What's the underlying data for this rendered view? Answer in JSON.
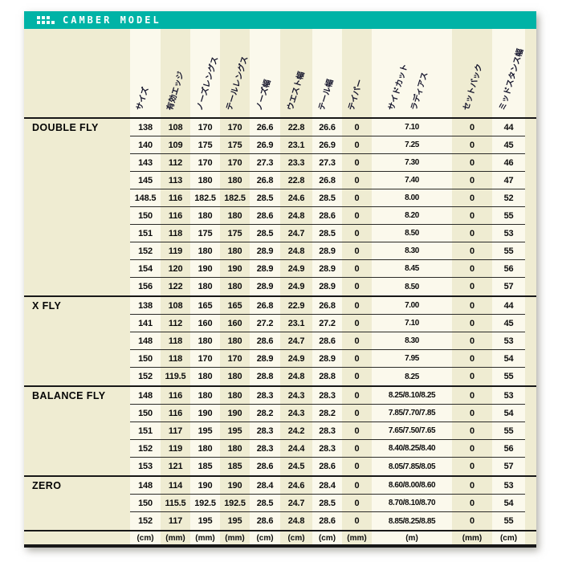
{
  "title_bar": {
    "label": "CAMBER MODEL"
  },
  "colors": {
    "accent": "#00b3a6",
    "paper": "#efecd2",
    "stripe": "#fbf9ec",
    "line": "#181818"
  },
  "table": {
    "headers": [
      [
        "サイズ"
      ],
      [
        "有効エッジ"
      ],
      [
        "ノーズレングス"
      ],
      [
        "テールレングス"
      ],
      [
        "ノーズ幅"
      ],
      [
        "ウエスト幅"
      ],
      [
        "テール幅"
      ],
      [
        "テイパー"
      ],
      [
        "サイドカット",
        "ラディアス"
      ],
      [
        "セットバック"
      ],
      [
        "ミッドスタンス幅"
      ]
    ],
    "units": [
      "(cm)",
      "(mm)",
      "(mm)",
      "(mm)",
      "(cm)",
      "(cm)",
      "(cm)",
      "(mm)",
      "(m)",
      "(mm)",
      "(cm)"
    ],
    "groups": [
      {
        "model": "DOUBLE FLY",
        "rows": [
          [
            "138",
            "108",
            "170",
            "170",
            "26.6",
            "22.8",
            "26.6",
            "0",
            "7.10",
            "0",
            "44"
          ],
          [
            "140",
            "109",
            "175",
            "175",
            "26.9",
            "23.1",
            "26.9",
            "0",
            "7.25",
            "0",
            "45"
          ],
          [
            "143",
            "112",
            "170",
            "170",
            "27.3",
            "23.3",
            "27.3",
            "0",
            "7.30",
            "0",
            "46"
          ],
          [
            "145",
            "113",
            "180",
            "180",
            "26.8",
            "22.8",
            "26.8",
            "0",
            "7.40",
            "0",
            "47"
          ],
          [
            "148.5",
            "116",
            "182.5",
            "182.5",
            "28.5",
            "24.6",
            "28.5",
            "0",
            "8.00",
            "0",
            "52"
          ],
          [
            "150",
            "116",
            "180",
            "180",
            "28.6",
            "24.8",
            "28.6",
            "0",
            "8.20",
            "0",
            "55"
          ],
          [
            "151",
            "118",
            "175",
            "175",
            "28.5",
            "24.7",
            "28.5",
            "0",
            "8.50",
            "0",
            "53"
          ],
          [
            "152",
            "119",
            "180",
            "180",
            "28.9",
            "24.8",
            "28.9",
            "0",
            "8.30",
            "0",
            "55"
          ],
          [
            "154",
            "120",
            "190",
            "190",
            "28.9",
            "24.9",
            "28.9",
            "0",
            "8.45",
            "0",
            "56"
          ],
          [
            "156",
            "122",
            "180",
            "180",
            "28.9",
            "24.9",
            "28.9",
            "0",
            "8.50",
            "0",
            "57"
          ]
        ]
      },
      {
        "model": "X FLY",
        "rows": [
          [
            "138",
            "108",
            "165",
            "165",
            "26.8",
            "22.9",
            "26.8",
            "0",
            "7.00",
            "0",
            "44"
          ],
          [
            "141",
            "112",
            "160",
            "160",
            "27.2",
            "23.1",
            "27.2",
            "0",
            "7.10",
            "0",
            "45"
          ],
          [
            "148",
            "118",
            "180",
            "180",
            "28.6",
            "24.7",
            "28.6",
            "0",
            "8.30",
            "0",
            "53"
          ],
          [
            "150",
            "118",
            "170",
            "170",
            "28.9",
            "24.9",
            "28.9",
            "0",
            "7.95",
            "0",
            "54"
          ],
          [
            "152",
            "119.5",
            "180",
            "180",
            "28.8",
            "24.8",
            "28.8",
            "0",
            "8.25",
            "0",
            "55"
          ]
        ]
      },
      {
        "model": "BALANCE FLY",
        "rows": [
          [
            "148",
            "116",
            "180",
            "180",
            "28.3",
            "24.3",
            "28.3",
            "0",
            "8.25/8.10/8.25",
            "0",
            "53"
          ],
          [
            "150",
            "116",
            "190",
            "190",
            "28.2",
            "24.3",
            "28.2",
            "0",
            "7.85/7.70/7.85",
            "0",
            "54"
          ],
          [
            "151",
            "117",
            "195",
            "195",
            "28.3",
            "24.2",
            "28.3",
            "0",
            "7.65/7.50/7.65",
            "0",
            "55"
          ],
          [
            "152",
            "119",
            "180",
            "180",
            "28.3",
            "24.4",
            "28.3",
            "0",
            "8.40/8.25/8.40",
            "0",
            "56"
          ],
          [
            "153",
            "121",
            "185",
            "185",
            "28.6",
            "24.5",
            "28.6",
            "0",
            "8.05/7.85/8.05",
            "0",
            "57"
          ]
        ]
      },
      {
        "model": "ZERO",
        "rows": [
          [
            "148",
            "114",
            "190",
            "190",
            "28.4",
            "24.6",
            "28.4",
            "0",
            "8.60/8.00/8.60",
            "0",
            "53"
          ],
          [
            "150",
            "115.5",
            "192.5",
            "192.5",
            "28.5",
            "24.7",
            "28.5",
            "0",
            "8.70/8.10/8.70",
            "0",
            "54"
          ],
          [
            "152",
            "117",
            "195",
            "195",
            "28.6",
            "24.8",
            "28.6",
            "0",
            "8.85/8.25/8.85",
            "0",
            "55"
          ]
        ]
      }
    ]
  }
}
